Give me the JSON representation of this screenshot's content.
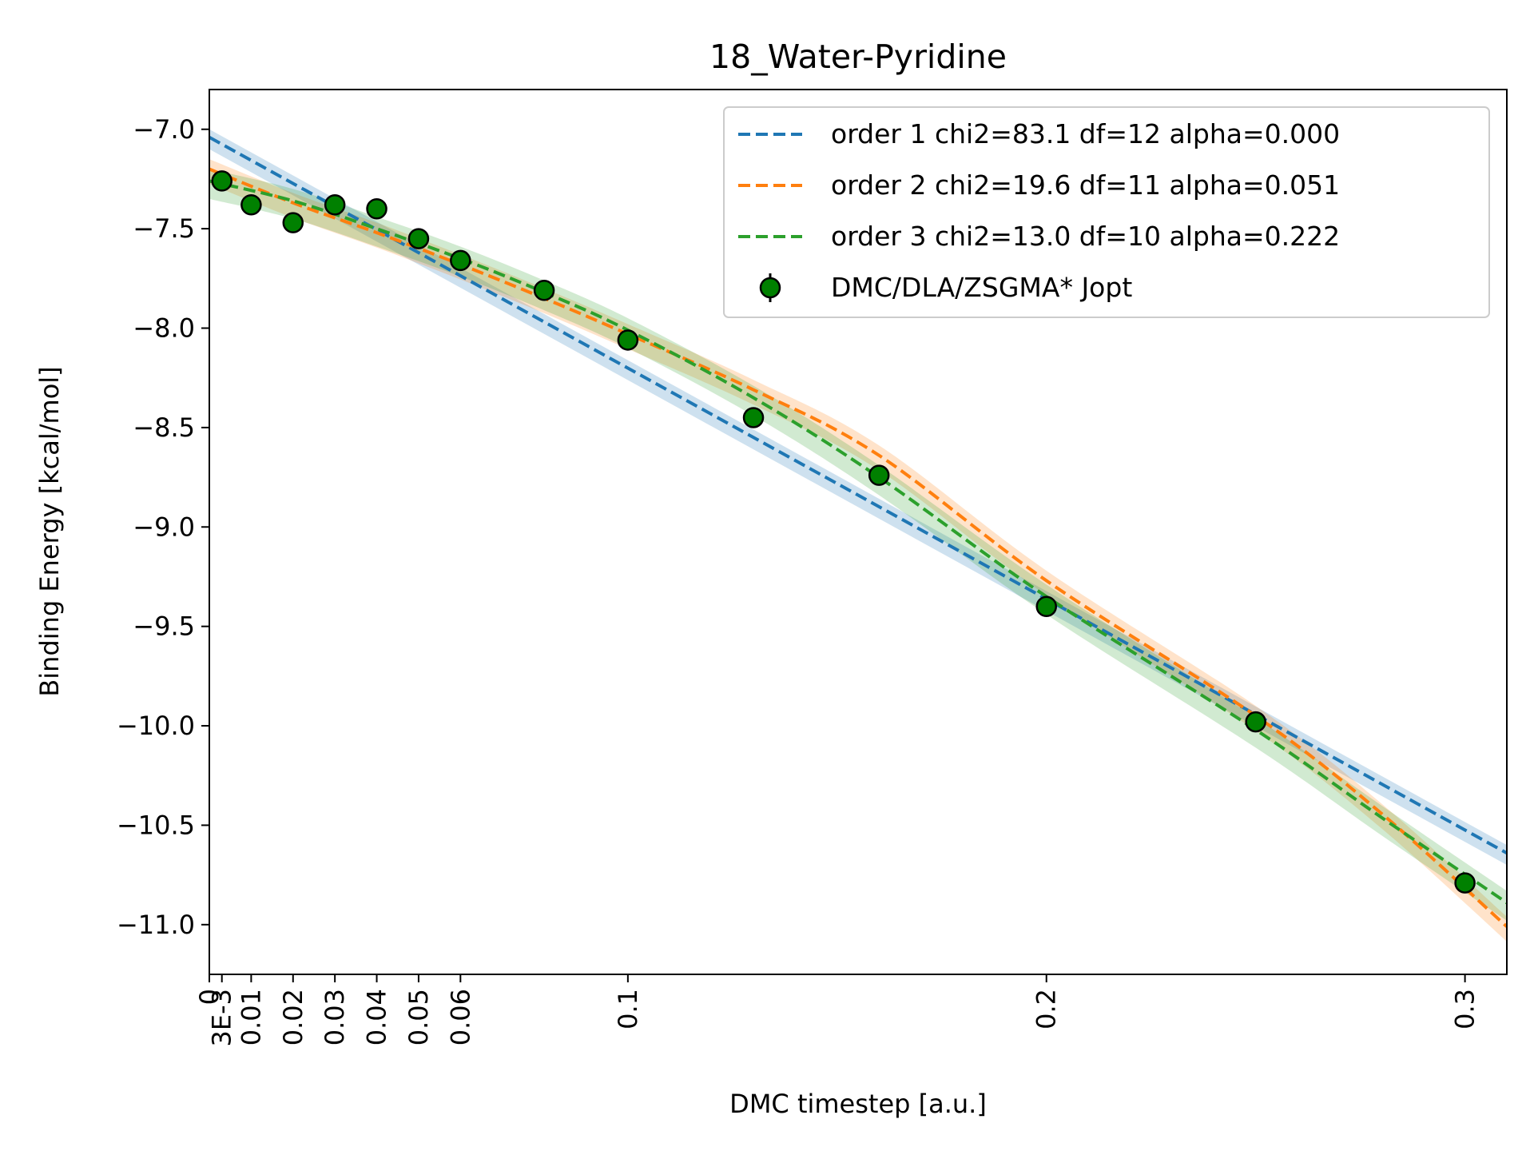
{
  "chart_data": {
    "type": "line",
    "title": "18_Water-Pyridine",
    "xlabel": "DMC timestep [a.u.]",
    "ylabel": "Binding Energy [kcal/mol]",
    "xlim": [
      0,
      0.31
    ],
    "ylim": [
      -11.25,
      -6.8
    ],
    "x_ticks": [
      {
        "value": 0,
        "label": "0"
      },
      {
        "value": 0.003,
        "label": "3E-3"
      },
      {
        "value": 0.01,
        "label": "0.01"
      },
      {
        "value": 0.02,
        "label": "0.02"
      },
      {
        "value": 0.03,
        "label": "0.03"
      },
      {
        "value": 0.04,
        "label": "0.04"
      },
      {
        "value": 0.05,
        "label": "0.05"
      },
      {
        "value": 0.06,
        "label": "0.06"
      },
      {
        "value": 0.1,
        "label": "0.1"
      },
      {
        "value": 0.2,
        "label": "0.2"
      },
      {
        "value": 0.3,
        "label": "0.3"
      }
    ],
    "y_ticks": [
      {
        "value": -7.0,
        "label": "−7.0"
      },
      {
        "value": -7.5,
        "label": "−7.5"
      },
      {
        "value": -8.0,
        "label": "−8.0"
      },
      {
        "value": -8.5,
        "label": "−8.5"
      },
      {
        "value": -9.0,
        "label": "−9.0"
      },
      {
        "value": -9.5,
        "label": "−9.5"
      },
      {
        "value": -10.0,
        "label": "−10.0"
      },
      {
        "value": -10.5,
        "label": "−10.5"
      },
      {
        "value": -11.0,
        "label": "−11.0"
      }
    ],
    "grid": false,
    "legend_position": "top-right",
    "series": [
      {
        "name": "order 1 chi2=83.1 df=12 alpha=0.000",
        "style": "dashed",
        "color": "#1f77b4",
        "x": [
          0,
          0.31
        ],
        "y": [
          -7.04,
          -10.64
        ],
        "band": 0.04
      },
      {
        "name": "order 2 chi2=19.6 df=11 alpha=0.051",
        "style": "dashed",
        "color": "#ff7f0e",
        "x": [
          0,
          0.02,
          0.04,
          0.06,
          0.08,
          0.1,
          0.13,
          0.16,
          0.2,
          0.25,
          0.28,
          0.31
        ],
        "y": [
          -7.2,
          -7.37,
          -7.52,
          -7.68,
          -7.85,
          -8.03,
          -8.31,
          -8.64,
          -9.27,
          -9.95,
          -10.44,
          -11.01
        ],
        "band": 0.05
      },
      {
        "name": "order 3 chi2=13.0 df=10 alpha=0.222",
        "style": "dashed",
        "color": "#2ca02c",
        "x": [
          0,
          0.02,
          0.04,
          0.06,
          0.08,
          0.1,
          0.13,
          0.16,
          0.2,
          0.25,
          0.28,
          0.31
        ],
        "y": [
          -7.26,
          -7.36,
          -7.5,
          -7.65,
          -7.82,
          -8.01,
          -8.35,
          -8.75,
          -9.35,
          -10.02,
          -10.46,
          -10.89
        ],
        "band": 0.06
      },
      {
        "name": "DMC/DLA/ZSGMA* Jopt",
        "style": "errorbar-points",
        "color": "#008000",
        "x": [
          0.003,
          0.01,
          0.02,
          0.03,
          0.04,
          0.05,
          0.06,
          0.08,
          0.1,
          0.13,
          0.16,
          0.2,
          0.25,
          0.3
        ],
        "y": [
          -7.26,
          -7.38,
          -7.47,
          -7.38,
          -7.4,
          -7.55,
          -7.66,
          -7.81,
          -8.06,
          -8.45,
          -8.74,
          -9.4,
          -9.98,
          -10.79
        ],
        "err": [
          0.02,
          0.03,
          0.05,
          0.02,
          0.02,
          0.02,
          0.02,
          0.03,
          0.03,
          0.03,
          0.03,
          0.05,
          0.04,
          0.04
        ]
      }
    ]
  }
}
